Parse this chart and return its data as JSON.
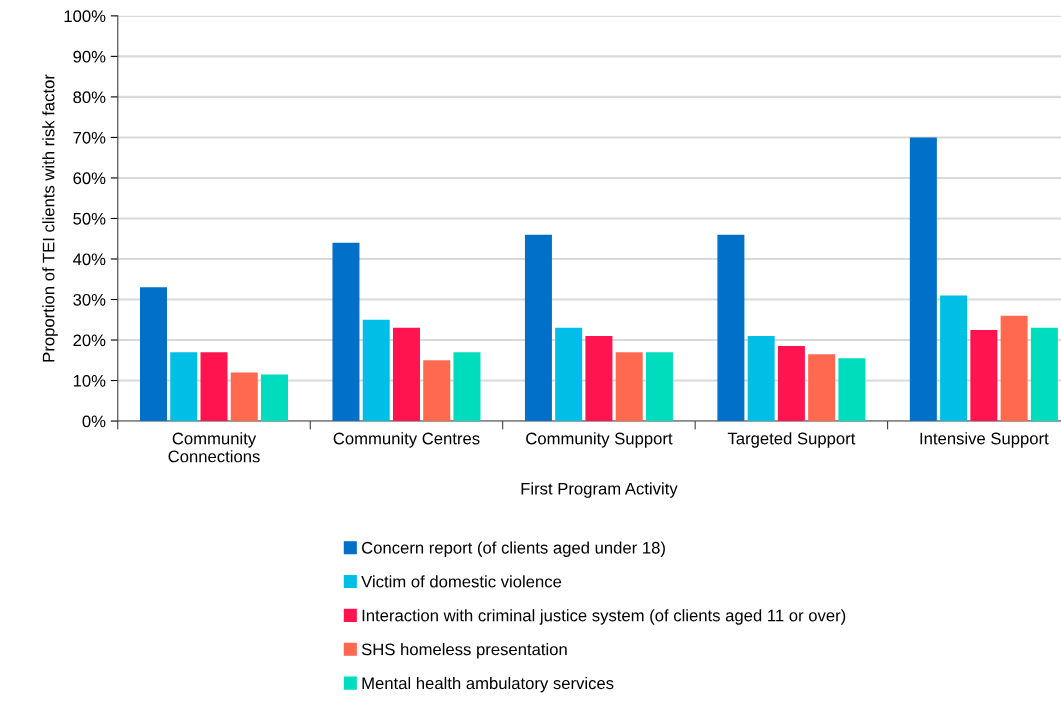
{
  "chart_data": {
    "type": "bar",
    "xlabel": "First Program Activity",
    "ylabel": "Proportion of TEI clients with risk factor",
    "categories": [
      "Community\nConnections",
      "Community Centres",
      "Community Support",
      "Targeted Support",
      "Intensive Support"
    ],
    "series": [
      {
        "name": "Concern report (of clients aged under 18)",
        "color": "#0070c8",
        "values": [
          33,
          44,
          46,
          46,
          70
        ]
      },
      {
        "name": "Victim of domestic violence",
        "color": "#00bee6",
        "values": [
          17,
          25,
          23,
          21,
          31
        ]
      },
      {
        "name": "Interaction with criminal justice system (of clients aged 11 or over)",
        "color": "#ff1450",
        "values": [
          17,
          23,
          21,
          18.5,
          22.5
        ]
      },
      {
        "name": "SHS homeless presentation",
        "color": "#ff6950",
        "values": [
          12,
          15,
          17,
          16.5,
          26
        ]
      },
      {
        "name": "Mental health ambulatory services",
        "color": "#00dcbe",
        "values": [
          11.5,
          17,
          17,
          15.5,
          23
        ]
      }
    ],
    "ylim": [
      0,
      100
    ],
    "yticks": [
      {
        "value": 0,
        "label": "0%"
      },
      {
        "value": 10,
        "label": "10%"
      },
      {
        "value": 20,
        "label": "20%"
      },
      {
        "value": 30,
        "label": "30%"
      },
      {
        "value": 40,
        "label": "40%"
      },
      {
        "value": 50,
        "label": "50%"
      },
      {
        "value": 60,
        "label": "60%"
      },
      {
        "value": 70,
        "label": "70%"
      },
      {
        "value": 80,
        "label": "80%"
      },
      {
        "value": 90,
        "label": "90%"
      },
      {
        "value": 100,
        "label": "100%"
      }
    ],
    "grid": "y",
    "legend": "bottom"
  }
}
